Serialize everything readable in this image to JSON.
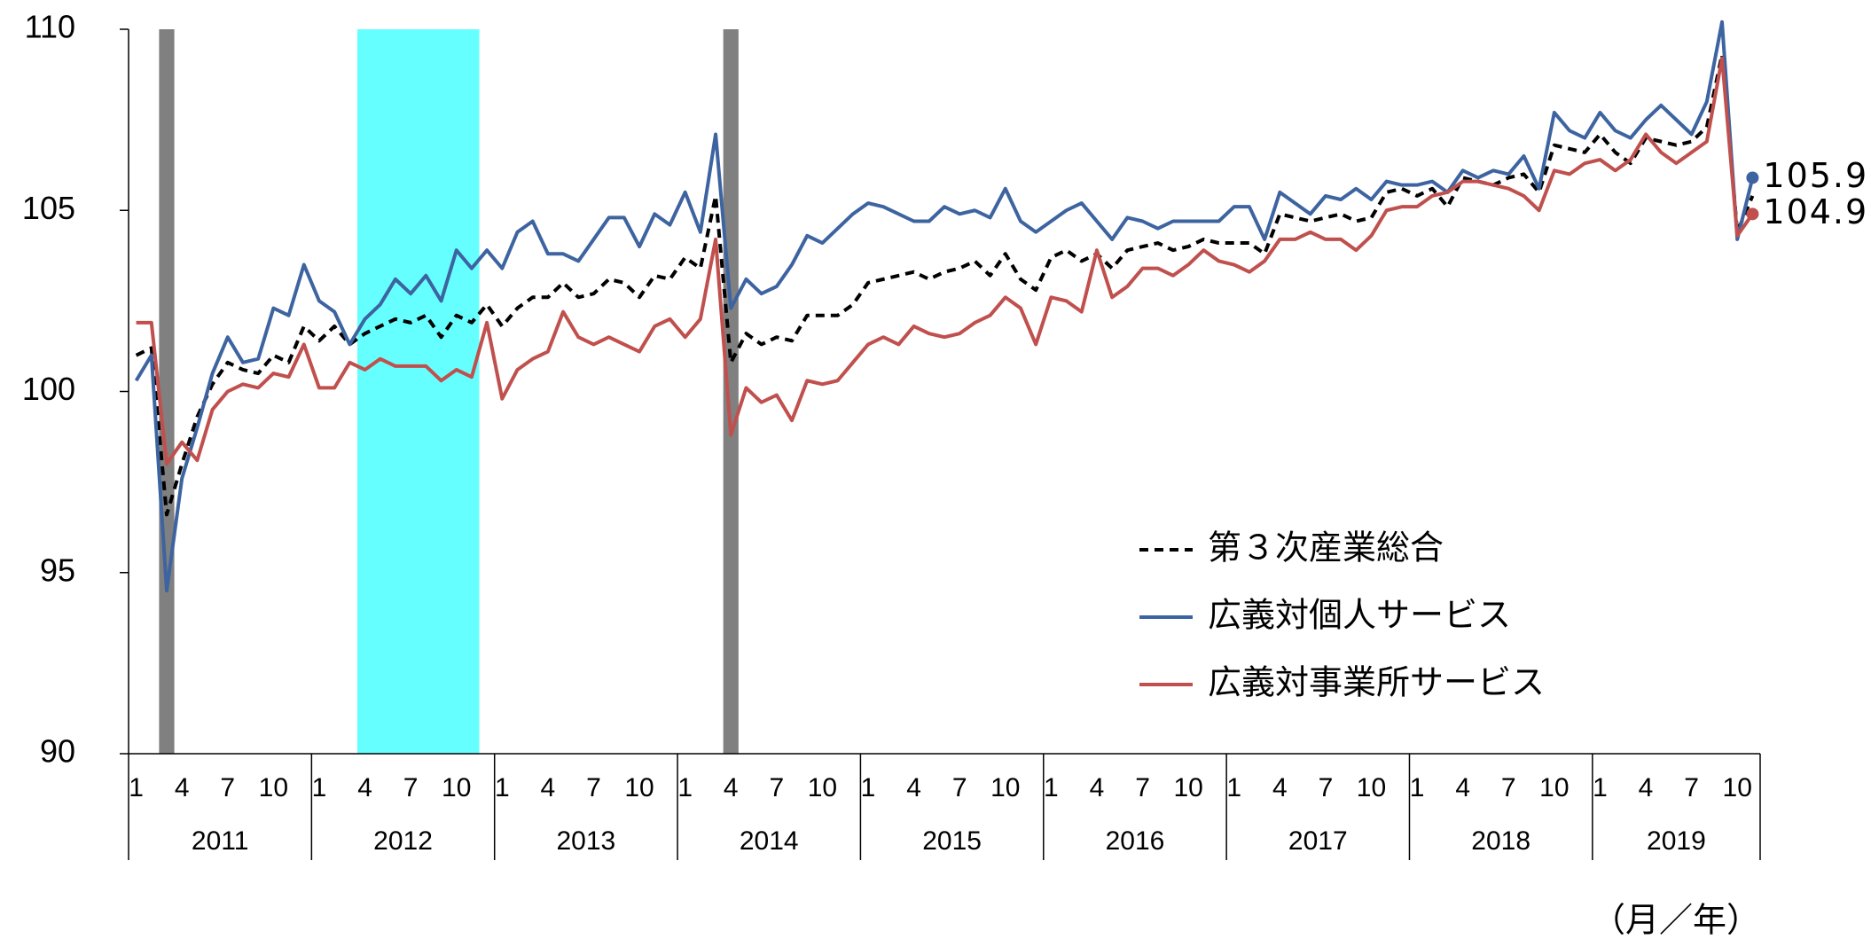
{
  "chart_data": {
    "type": "line",
    "categories": [
      "1",
      null,
      null,
      "4",
      null,
      null,
      "7",
      null,
      null,
      "10",
      null,
      null,
      "1",
      null,
      null,
      "4",
      null,
      null,
      "7",
      null,
      null,
      "10",
      null,
      null,
      "1",
      null,
      null,
      "4",
      null,
      null,
      "7",
      null,
      null,
      "10",
      null,
      null,
      "1",
      null,
      null,
      "4",
      null,
      null,
      "7",
      null,
      null,
      "10",
      null,
      null,
      "1",
      null,
      null,
      "4",
      null,
      null,
      "7",
      null,
      null,
      "10",
      null,
      null,
      "1",
      null,
      null,
      "4",
      null,
      null,
      "7",
      null,
      null,
      "10",
      null,
      null,
      "1",
      null,
      null,
      "4",
      null,
      null,
      "7",
      null,
      null,
      "10",
      null,
      null,
      "1",
      null,
      null,
      "4",
      null,
      null,
      "7",
      null,
      null,
      "10",
      null,
      null,
      "1",
      null,
      null,
      "4",
      null,
      null,
      "7",
      null,
      null,
      "10",
      null
    ],
    "years": [
      "2011",
      "2012",
      "2013",
      "2014",
      "2015",
      "2016",
      "2017",
      "2018",
      "2019"
    ],
    "x_unit_label": "（月／年）",
    "ylim": [
      90,
      110
    ],
    "yticks": [
      90,
      95,
      100,
      105,
      110
    ],
    "grid": false,
    "bands": [
      {
        "start": 2,
        "end": 2,
        "color": "#808080"
      },
      {
        "start": 15,
        "end": 22,
        "color": "#66ffff"
      },
      {
        "start": 39,
        "end": 39,
        "color": "#808080"
      }
    ],
    "series": [
      {
        "name": "第３次産業総合",
        "color": "#000000",
        "dashed": true,
        "values": [
          101.0,
          101.2,
          96.6,
          98.0,
          99.3,
          100.2,
          100.8,
          100.6,
          100.5,
          101.0,
          100.8,
          101.8,
          101.4,
          101.8,
          101.3,
          101.6,
          101.8,
          102.0,
          101.9,
          102.1,
          101.5,
          102.1,
          101.9,
          102.4,
          101.8,
          102.3,
          102.6,
          102.6,
          103.0,
          102.6,
          102.7,
          103.1,
          103.0,
          102.6,
          103.2,
          103.1,
          103.7,
          103.4,
          105.4,
          100.8,
          101.6,
          101.3,
          101.5,
          101.4,
          102.1,
          102.1,
          102.1,
          102.4,
          103.0,
          103.1,
          103.2,
          103.3,
          103.1,
          103.3,
          103.4,
          103.6,
          103.2,
          103.8,
          103.1,
          102.8,
          103.7,
          103.9,
          103.6,
          103.8,
          103.4,
          103.9,
          104.0,
          104.1,
          103.9,
          104.0,
          104.2,
          104.1,
          104.1,
          104.1,
          103.8,
          104.9,
          104.8,
          104.7,
          104.8,
          104.9,
          104.7,
          104.8,
          105.5,
          105.6,
          105.4,
          105.6,
          105.1,
          105.9,
          105.8,
          105.7,
          105.9,
          106.0,
          105.5,
          106.8,
          106.7,
          106.6,
          107.1,
          106.6,
          106.3,
          107.0,
          106.9,
          106.8,
          106.9,
          107.3,
          109.3,
          104.4,
          105.4
        ]
      },
      {
        "name": "広義対個人サービス",
        "color": "#3d64a0",
        "dashed": false,
        "values": [
          100.3,
          101.0,
          94.5,
          97.6,
          99.0,
          100.5,
          101.5,
          100.8,
          100.9,
          102.3,
          102.1,
          103.5,
          102.5,
          102.2,
          101.3,
          102.0,
          102.4,
          103.1,
          102.7,
          103.2,
          102.5,
          103.9,
          103.4,
          103.9,
          103.4,
          104.4,
          104.7,
          103.8,
          103.8,
          103.6,
          104.2,
          104.8,
          104.8,
          104.0,
          104.9,
          104.6,
          105.5,
          104.4,
          107.1,
          102.3,
          103.1,
          102.7,
          102.9,
          103.5,
          104.3,
          104.1,
          104.5,
          104.9,
          105.2,
          105.1,
          104.9,
          104.7,
          104.7,
          105.1,
          104.9,
          105.0,
          104.8,
          105.6,
          104.7,
          104.4,
          104.7,
          105.0,
          105.2,
          104.7,
          104.2,
          104.8,
          104.7,
          104.5,
          104.7,
          104.7,
          104.7,
          104.7,
          105.1,
          105.1,
          104.2,
          105.5,
          105.2,
          104.9,
          105.4,
          105.3,
          105.6,
          105.3,
          105.8,
          105.7,
          105.7,
          105.8,
          105.5,
          106.1,
          105.9,
          106.1,
          106.0,
          106.5,
          105.6,
          107.7,
          107.2,
          107.0,
          107.7,
          107.2,
          107.0,
          107.5,
          107.9,
          107.5,
          107.1,
          108.0,
          110.2,
          104.2,
          105.9
        ],
        "value_labels": [
          null,
          null,
          null,
          null,
          null,
          null,
          null,
          null,
          null,
          null,
          null,
          null,
          null,
          null,
          null,
          null,
          null,
          null,
          null,
          null,
          null,
          null,
          null,
          null,
          null,
          null,
          null,
          null,
          null,
          null,
          null,
          null,
          null,
          null,
          null,
          null,
          null,
          null,
          null,
          null,
          null,
          null,
          null,
          null,
          null,
          null,
          null,
          null,
          null,
          null,
          null,
          null,
          null,
          null,
          null,
          null,
          null,
          null,
          null,
          null,
          null,
          null,
          null,
          null,
          null,
          null,
          null,
          null,
          null,
          null,
          null,
          null,
          null,
          null,
          null,
          null,
          null,
          null,
          null,
          null,
          null,
          null,
          null,
          null,
          null,
          null,
          null,
          null,
          null,
          null,
          null,
          null,
          null,
          null,
          null,
          null,
          null,
          null,
          null,
          null,
          null,
          null,
          null,
          null,
          null,
          null,
          "105.9"
        ]
      },
      {
        "name": "広義対事業所サービス",
        "color": "#c0504d",
        "dashed": false,
        "values": [
          101.9,
          101.9,
          98.0,
          98.6,
          98.1,
          99.5,
          100.0,
          100.2,
          100.1,
          100.5,
          100.4,
          101.3,
          100.1,
          100.1,
          100.8,
          100.6,
          100.9,
          100.7,
          100.7,
          100.7,
          100.3,
          100.6,
          100.4,
          101.9,
          99.8,
          100.6,
          100.9,
          101.1,
          102.2,
          101.5,
          101.3,
          101.5,
          101.3,
          101.1,
          101.8,
          102.0,
          101.5,
          102.0,
          104.2,
          98.8,
          100.1,
          99.7,
          99.9,
          99.2,
          100.3,
          100.2,
          100.3,
          100.8,
          101.3,
          101.5,
          101.3,
          101.8,
          101.6,
          101.5,
          101.6,
          101.9,
          102.1,
          102.6,
          102.3,
          101.3,
          102.6,
          102.5,
          102.2,
          103.9,
          102.6,
          102.9,
          103.4,
          103.4,
          103.2,
          103.5,
          103.9,
          103.6,
          103.5,
          103.3,
          103.6,
          104.2,
          104.2,
          104.4,
          104.2,
          104.2,
          103.9,
          104.3,
          105.0,
          105.1,
          105.1,
          105.4,
          105.5,
          105.8,
          105.8,
          105.7,
          105.6,
          105.4,
          105.0,
          106.1,
          106.0,
          106.3,
          106.4,
          106.1,
          106.4,
          107.1,
          106.6,
          106.3,
          106.6,
          106.9,
          109.2,
          104.3,
          104.9
        ],
        "value_labels": [
          null,
          null,
          null,
          null,
          null,
          null,
          null,
          null,
          null,
          null,
          null,
          null,
          null,
          null,
          null,
          null,
          null,
          null,
          null,
          null,
          null,
          null,
          null,
          null,
          null,
          null,
          null,
          null,
          null,
          null,
          null,
          null,
          null,
          null,
          null,
          null,
          null,
          null,
          null,
          null,
          null,
          null,
          null,
          null,
          null,
          null,
          null,
          null,
          null,
          null,
          null,
          null,
          null,
          null,
          null,
          null,
          null,
          null,
          null,
          null,
          null,
          null,
          null,
          null,
          null,
          null,
          null,
          null,
          null,
          null,
          null,
          null,
          null,
          null,
          null,
          null,
          null,
          null,
          null,
          null,
          null,
          null,
          null,
          null,
          null,
          null,
          null,
          null,
          null,
          null,
          null,
          null,
          null,
          null,
          null,
          null,
          null,
          null,
          null,
          null,
          null,
          null,
          null,
          null,
          null,
          null,
          "104.9"
        ]
      }
    ]
  }
}
